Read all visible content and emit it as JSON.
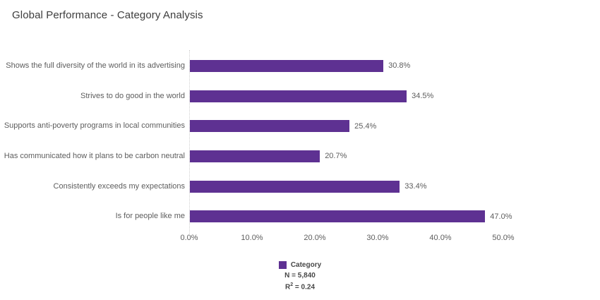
{
  "title": "Global Performance - Category Analysis",
  "chart_data": {
    "type": "bar",
    "orientation": "horizontal",
    "title": "Global Performance - Category Analysis",
    "categories": [
      "Shows the full diversity of the world in its advertising",
      "Strives to do good in the world",
      "Supports anti-poverty programs in local communities",
      "Has communicated how it plans to be carbon neutral",
      "Consistently exceeds my expectations",
      "Is for people like me"
    ],
    "values": [
      30.8,
      34.5,
      25.4,
      20.7,
      33.4,
      47.0
    ],
    "value_labels": [
      "30.8%",
      "34.5%",
      "25.4%",
      "20.7%",
      "33.4%",
      "47.0%"
    ],
    "xlabel": "",
    "ylabel": "",
    "xlim": [
      0,
      50
    ],
    "x_tick_values": [
      0,
      10,
      20,
      30,
      40,
      50
    ],
    "x_tick_labels": [
      "0.0%",
      "10.0%",
      "20.0%",
      "30.0%",
      "40.0%",
      "50.0%"
    ],
    "grid": "dotted-zero-line-only",
    "legend_position": "bottom-center",
    "series_name": "Category",
    "bar_color": "#5E3192"
  },
  "legend": {
    "swatch_color": "#5E3192",
    "label": "Category",
    "n_label": "N = 5,840",
    "r2_prefix": "R",
    "r2_sup": "2",
    "r2_suffix": " = 0.24"
  },
  "colors": {
    "bar": "#5E3192",
    "title_text": "#3d3d3d",
    "label_text": "#5d5d5d",
    "legend_text": "#474747",
    "zero_line": "#cfcfcf",
    "background": "#ffffff"
  }
}
